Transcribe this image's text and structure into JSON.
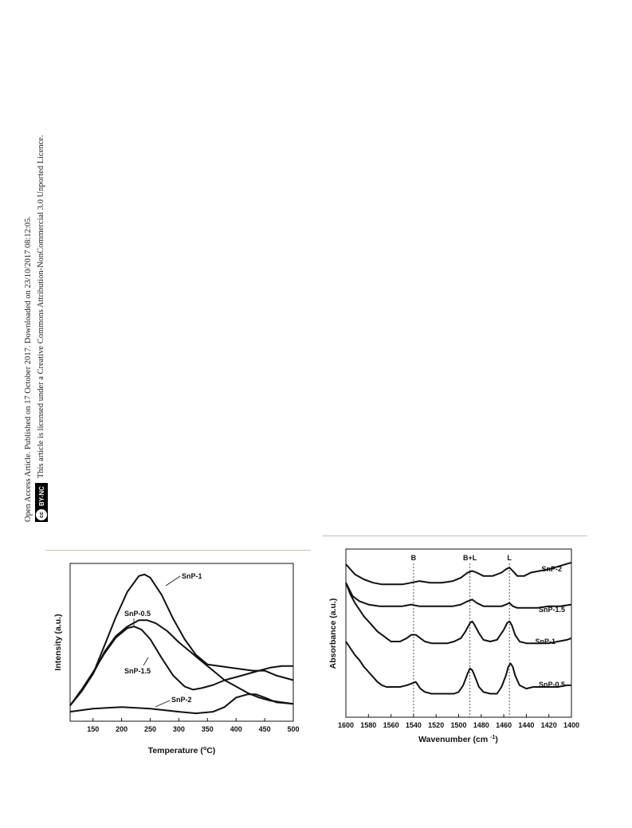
{
  "side_notice": {
    "line1": "Open Access Article. Published on 17 October 2017. Downloaded on 23/10/2017 08:12:05.",
    "line2": "This article is licensed under a Creative Commons Attribution-NonCommercial 3.0 Unported Licence.",
    "badge_cc": "cc",
    "badge_text": "BY-NC"
  },
  "chart_data": [
    {
      "type": "line",
      "xlabel": "Temperature (°C)",
      "ylabel": "Intensity (a.u.)",
      "xlim": [
        110,
        500
      ],
      "ylim": [
        0,
        100
      ],
      "xticks": [
        "150",
        "200",
        "250",
        "300",
        "350",
        "400",
        "450",
        "500"
      ],
      "grid": false,
      "series": [
        {
          "name": "SnP-1",
          "x": [
            110,
            130,
            150,
            170,
            190,
            210,
            230,
            240,
            250,
            270,
            290,
            310,
            330,
            350,
            370,
            390,
            410,
            430,
            450,
            470,
            490,
            500
          ],
          "y": [
            10,
            19,
            30,
            48,
            66,
            82,
            92,
            93,
            91,
            80,
            65,
            52,
            42,
            36,
            35,
            34,
            33,
            32,
            32,
            29,
            27,
            26
          ]
        },
        {
          "name": "SnP-0.5",
          "x": [
            110,
            130,
            150,
            170,
            190,
            210,
            230,
            245,
            260,
            280,
            300,
            320,
            340,
            360,
            380,
            400,
            420,
            440,
            460,
            480,
            500
          ],
          "y": [
            10,
            19,
            30,
            44,
            54,
            60,
            64,
            64,
            62,
            57,
            50,
            44,
            38,
            32,
            26,
            22,
            18,
            15,
            13,
            12,
            11
          ]
        },
        {
          "name": "SnP-1.5",
          "x": [
            110,
            130,
            150,
            170,
            190,
            210,
            222,
            235,
            250,
            270,
            290,
            310,
            325,
            340,
            360,
            380,
            400,
            420,
            440,
            460,
            480,
            500
          ],
          "y": [
            10,
            20,
            31,
            43,
            53,
            59,
            60,
            58,
            52,
            40,
            29,
            22,
            20,
            21,
            23,
            26,
            28,
            30,
            32,
            34,
            35,
            35
          ]
        },
        {
          "name": "SnP-2",
          "x": [
            110,
            150,
            200,
            250,
            300,
            330,
            360,
            380,
            400,
            420,
            435,
            450,
            470,
            500
          ],
          "y": [
            6,
            8,
            9,
            8,
            6,
            5,
            6,
            9,
            15,
            17,
            17,
            15,
            12,
            11
          ]
        }
      ],
      "annotations": [
        {
          "text": "SnP-1"
        },
        {
          "text": "SnP-0.5"
        },
        {
          "text": "SnP-1.5"
        },
        {
          "text": "SnP-2"
        }
      ]
    },
    {
      "type": "line",
      "xlabel": "Wavenumber (cm⁻¹)",
      "ylabel": "Absorbance (a.u.)",
      "xlim": [
        1600,
        1400
      ],
      "ylim": [
        0,
        100
      ],
      "xticks": [
        "1600",
        "1580",
        "1560",
        "1540",
        "1520",
        "1500",
        "1480",
        "1460",
        "1440",
        "1420",
        "1400"
      ],
      "grid": false,
      "band_markers": [
        {
          "label": "B",
          "x": 1540
        },
        {
          "label": "B+L",
          "x": 1490
        },
        {
          "label": "L",
          "x": 1455
        }
      ],
      "series": [
        {
          "name": "SnP-2",
          "x": [
            1600,
            1592,
            1584,
            1576,
            1568,
            1560,
            1550,
            1542,
            1535,
            1525,
            1515,
            1505,
            1498,
            1492,
            1488,
            1484,
            1478,
            1470,
            1462,
            1458,
            1455,
            1452,
            1448,
            1442,
            1436,
            1428,
            1420,
            1410,
            1400
          ],
          "y": [
            91,
            85,
            82,
            80,
            79,
            79,
            79,
            80,
            81,
            80,
            80,
            81,
            83,
            86,
            87,
            86,
            84,
            84,
            86,
            88,
            89,
            87,
            84,
            84,
            86,
            87,
            88,
            90,
            92
          ]
        },
        {
          "name": "SnP-1.5",
          "x": [
            1600,
            1594,
            1588,
            1580,
            1570,
            1560,
            1550,
            1542,
            1535,
            1525,
            1515,
            1505,
            1498,
            1492,
            1488,
            1484,
            1478,
            1470,
            1462,
            1458,
            1455,
            1452,
            1448,
            1440,
            1430,
            1420,
            1410,
            1400
          ],
          "y": [
            80,
            72,
            69,
            67,
            66,
            66,
            66,
            67,
            66,
            66,
            66,
            66,
            67,
            69,
            70,
            68,
            66,
            66,
            66,
            67,
            68,
            66,
            65,
            65,
            65,
            66,
            66,
            67
          ]
        },
        {
          "name": "SnP-1",
          "x": [
            1600,
            1596,
            1592,
            1588,
            1584,
            1580,
            1576,
            1572,
            1568,
            1564,
            1560,
            1556,
            1552,
            1546,
            1542,
            1538,
            1534,
            1530,
            1524,
            1518,
            1510,
            1504,
            1498,
            1494,
            1490,
            1488,
            1486,
            1482,
            1478,
            1472,
            1466,
            1460,
            1457,
            1455,
            1453,
            1450,
            1446,
            1440,
            1434,
            1428,
            1420,
            1412,
            1404,
            1400
          ],
          "y": [
            80,
            73,
            68,
            64,
            60,
            57,
            54,
            51,
            49,
            47,
            45,
            45,
            45,
            47,
            49,
            49,
            47,
            45,
            44,
            44,
            44,
            45,
            47,
            51,
            56,
            57,
            55,
            50,
            46,
            45,
            46,
            52,
            56,
            57,
            55,
            49,
            45,
            44,
            44,
            44,
            44,
            45,
            46,
            47
          ]
        },
        {
          "name": "SnP-0.5",
          "x": [
            1600,
            1596,
            1592,
            1588,
            1584,
            1580,
            1576,
            1572,
            1568,
            1564,
            1560,
            1556,
            1552,
            1546,
            1542,
            1538,
            1534,
            1530,
            1524,
            1518,
            1510,
            1504,
            1500,
            1496,
            1492,
            1490,
            1488,
            1486,
            1482,
            1478,
            1472,
            1466,
            1462,
            1458,
            1456,
            1454,
            1452,
            1450,
            1446,
            1440,
            1434,
            1428,
            1420,
            1412,
            1404,
            1400
          ],
          "y": [
            45,
            41,
            37,
            34,
            30,
            27,
            24,
            21,
            19,
            18,
            18,
            18,
            18,
            19,
            20,
            21,
            17,
            15,
            14,
            14,
            14,
            14,
            15,
            19,
            26,
            29,
            28,
            25,
            18,
            15,
            14,
            14,
            18,
            25,
            30,
            32,
            30,
            25,
            19,
            17,
            18,
            18,
            18,
            18,
            19,
            19
          ]
        }
      ],
      "annotations": [
        {
          "text": "SnP-2"
        },
        {
          "text": "SnP-1.5"
        },
        {
          "text": "SnP-1"
        },
        {
          "text": "SnP-0.5"
        }
      ]
    }
  ]
}
